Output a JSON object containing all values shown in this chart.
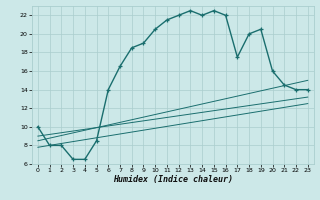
{
  "title": "",
  "xlabel": "Humidex (Indice chaleur)",
  "ylabel": "",
  "bg_color": "#cce8e8",
  "grid_color": "#aacece",
  "line_color": "#1a6e6e",
  "xlim": [
    -0.5,
    23.5
  ],
  "ylim": [
    6,
    23
  ],
  "xticks": [
    0,
    1,
    2,
    3,
    4,
    5,
    6,
    7,
    8,
    9,
    10,
    11,
    12,
    13,
    14,
    15,
    16,
    17,
    18,
    19,
    20,
    21,
    22,
    23
  ],
  "yticks": [
    6,
    8,
    10,
    12,
    14,
    16,
    18,
    20,
    22
  ],
  "main_line_x": [
    0,
    1,
    2,
    3,
    4,
    5,
    6,
    7,
    8,
    9,
    10,
    11,
    12,
    13,
    14,
    15,
    16,
    17,
    18,
    19,
    20,
    21,
    22,
    23
  ],
  "main_line_y": [
    10,
    8.0,
    8.0,
    6.5,
    6.5,
    8.5,
    14.0,
    16.5,
    18.5,
    19.0,
    20.5,
    21.5,
    22.0,
    22.5,
    22.0,
    22.5,
    22.0,
    17.5,
    20.0,
    20.5,
    16.0,
    14.5,
    14.0,
    14.0
  ],
  "ref_line1_x": [
    0,
    23
  ],
  "ref_line1_y": [
    9.0,
    13.2
  ],
  "ref_line2_x": [
    0,
    23
  ],
  "ref_line2_y": [
    8.5,
    15.0
  ],
  "ref_line3_x": [
    0,
    23
  ],
  "ref_line3_y": [
    7.8,
    12.5
  ],
  "marker_indices": [
    0,
    1,
    2,
    3,
    4,
    5,
    6,
    7,
    8,
    9,
    10,
    11,
    12,
    13,
    14,
    15,
    16,
    17,
    18,
    19,
    20,
    21,
    22,
    23
  ],
  "xlabel_fontsize": 6.0
}
